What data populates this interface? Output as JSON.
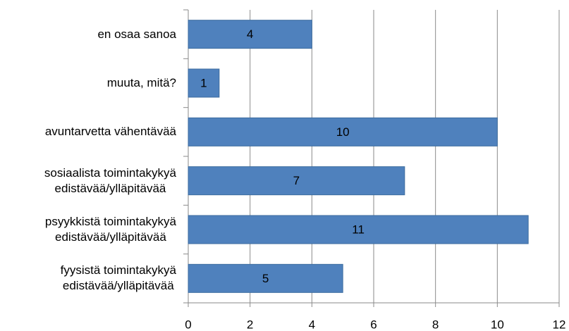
{
  "chart_data": {
    "type": "hbar",
    "categories": [
      "en osaa sanoa",
      "muuta, mitä?",
      "avuntarvetta vähentävää",
      "sosiaalista toimintakykyä\nedistävää/ylläpitävää",
      "psyykkistä toimintakykyä\nedistävää/ylläpitävää",
      "fyysistä toimintakykyä\nedistävää/ylläpitävää"
    ],
    "values": [
      4,
      1,
      10,
      7,
      11,
      5
    ],
    "color": "#4f81bd",
    "xlim": [
      0,
      12
    ],
    "xticks": [
      0,
      2,
      4,
      6,
      8,
      10,
      12
    ],
    "grid": true
  }
}
